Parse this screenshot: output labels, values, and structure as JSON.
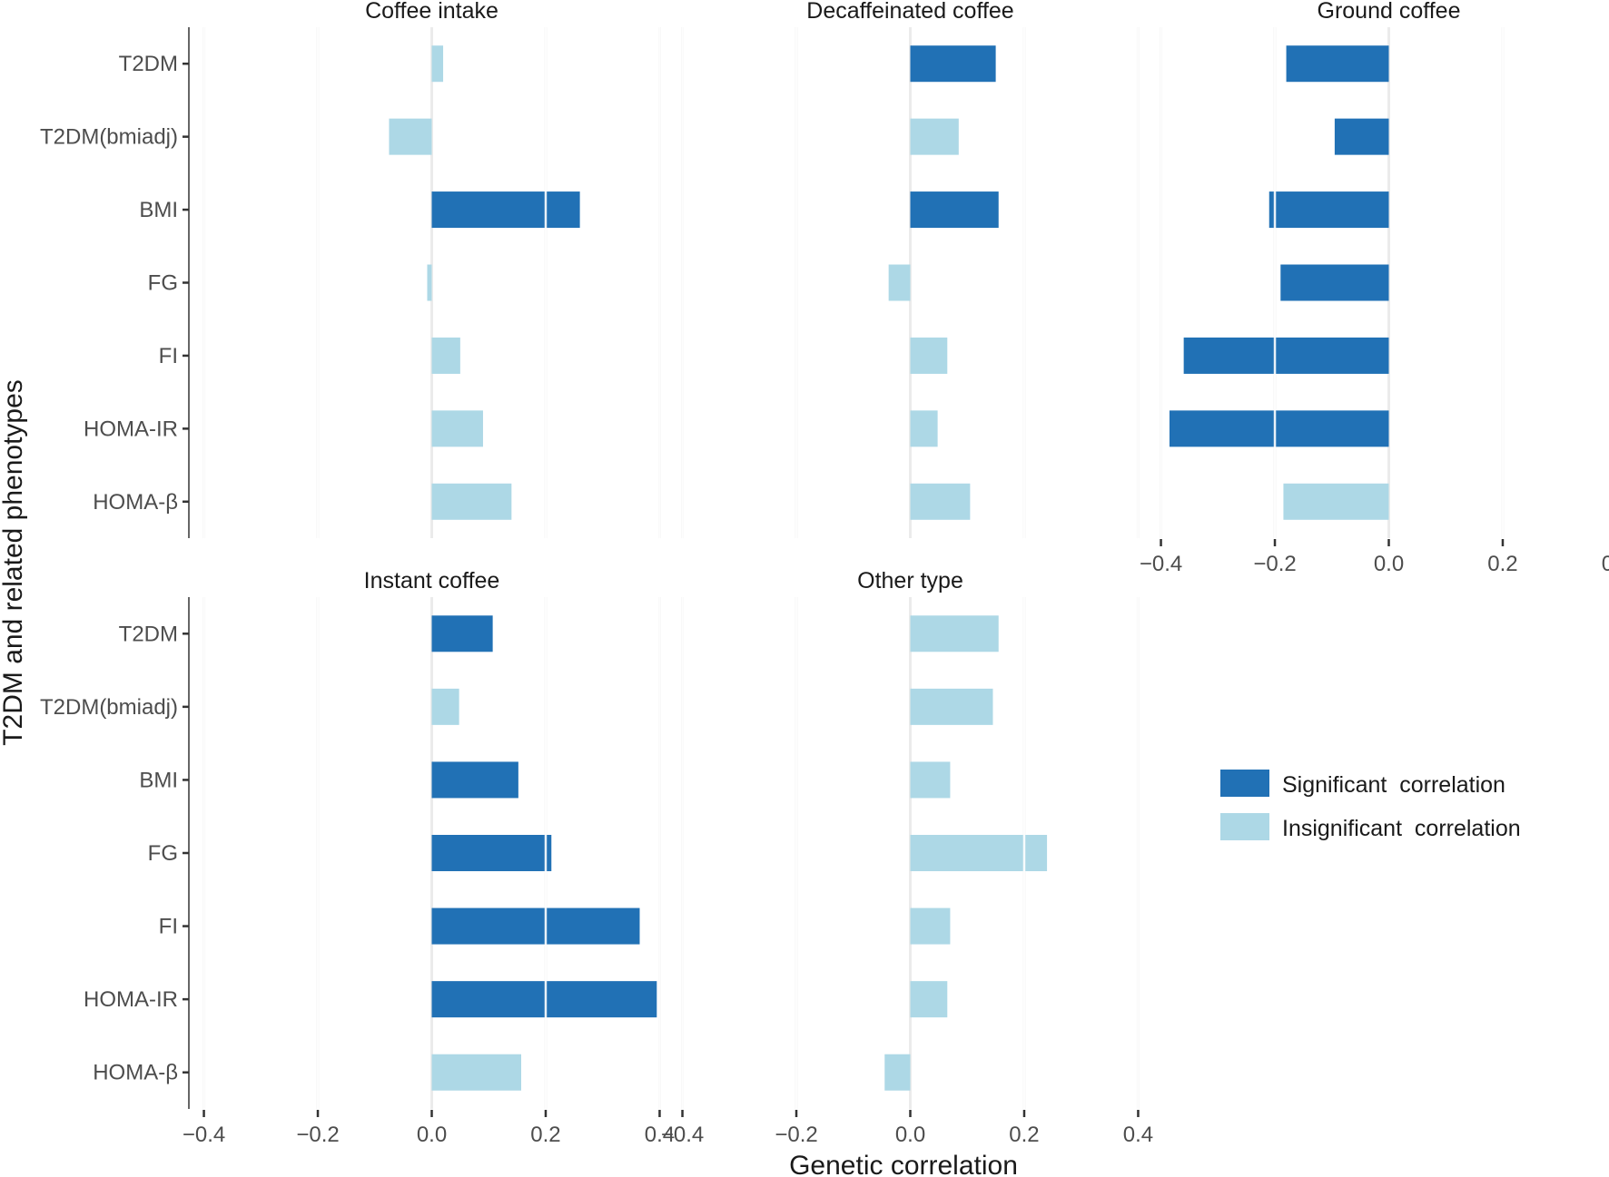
{
  "chart_data": {
    "type": "bar",
    "orientation": "horizontal",
    "xlabel": "Genetic correlation",
    "ylabel": "T2DM and related phenotypes",
    "categories": [
      "T2DM",
      "T2DM(bmiadj)",
      "BMI",
      "FG",
      "FI",
      "HOMA-IR",
      "HOMA-β"
    ],
    "xlim": [
      -0.42,
      0.42
    ],
    "xticks": [
      -0.4,
      -0.2,
      0.0,
      0.2,
      0.4
    ],
    "xtick_labels": [
      "−0.4",
      "−0.2",
      "0.0",
      "0.2",
      "0.4"
    ],
    "grid": "vertical major",
    "colors": {
      "significant": "#2171b5",
      "insignificant": "#add8e6",
      "grid": "#ebebeb",
      "axis": "#333333"
    },
    "legend": {
      "position": "right",
      "entries": [
        {
          "key": "significant",
          "label": "Significant  correlation"
        },
        {
          "key": "insignificant",
          "label": "Insignificant  correlation"
        }
      ]
    },
    "panels": [
      {
        "title": "Coffee intake",
        "values": [
          0.02,
          -0.075,
          0.26,
          -0.008,
          0.05,
          0.09,
          0.14
        ],
        "significant": [
          false,
          false,
          true,
          false,
          false,
          false,
          false
        ]
      },
      {
        "title": "Decaffeinated coffee",
        "values": [
          0.15,
          0.085,
          0.155,
          -0.038,
          0.065,
          0.048,
          0.105
        ],
        "significant": [
          true,
          false,
          true,
          false,
          false,
          false,
          false
        ]
      },
      {
        "title": "Ground coffee",
        "values": [
          -0.18,
          -0.095,
          -0.21,
          -0.19,
          -0.36,
          -0.385,
          -0.185
        ],
        "significant": [
          true,
          true,
          true,
          true,
          true,
          true,
          false
        ]
      },
      {
        "title": "Instant coffee",
        "values": [
          0.107,
          0.048,
          0.152,
          0.21,
          0.365,
          0.395,
          0.157
        ],
        "significant": [
          true,
          false,
          true,
          true,
          true,
          true,
          false
        ]
      },
      {
        "title": "Other type",
        "values": [
          0.155,
          0.145,
          0.07,
          0.24,
          0.07,
          0.065,
          -0.045
        ],
        "significant": [
          false,
          false,
          false,
          false,
          false,
          false,
          false
        ]
      }
    ]
  }
}
